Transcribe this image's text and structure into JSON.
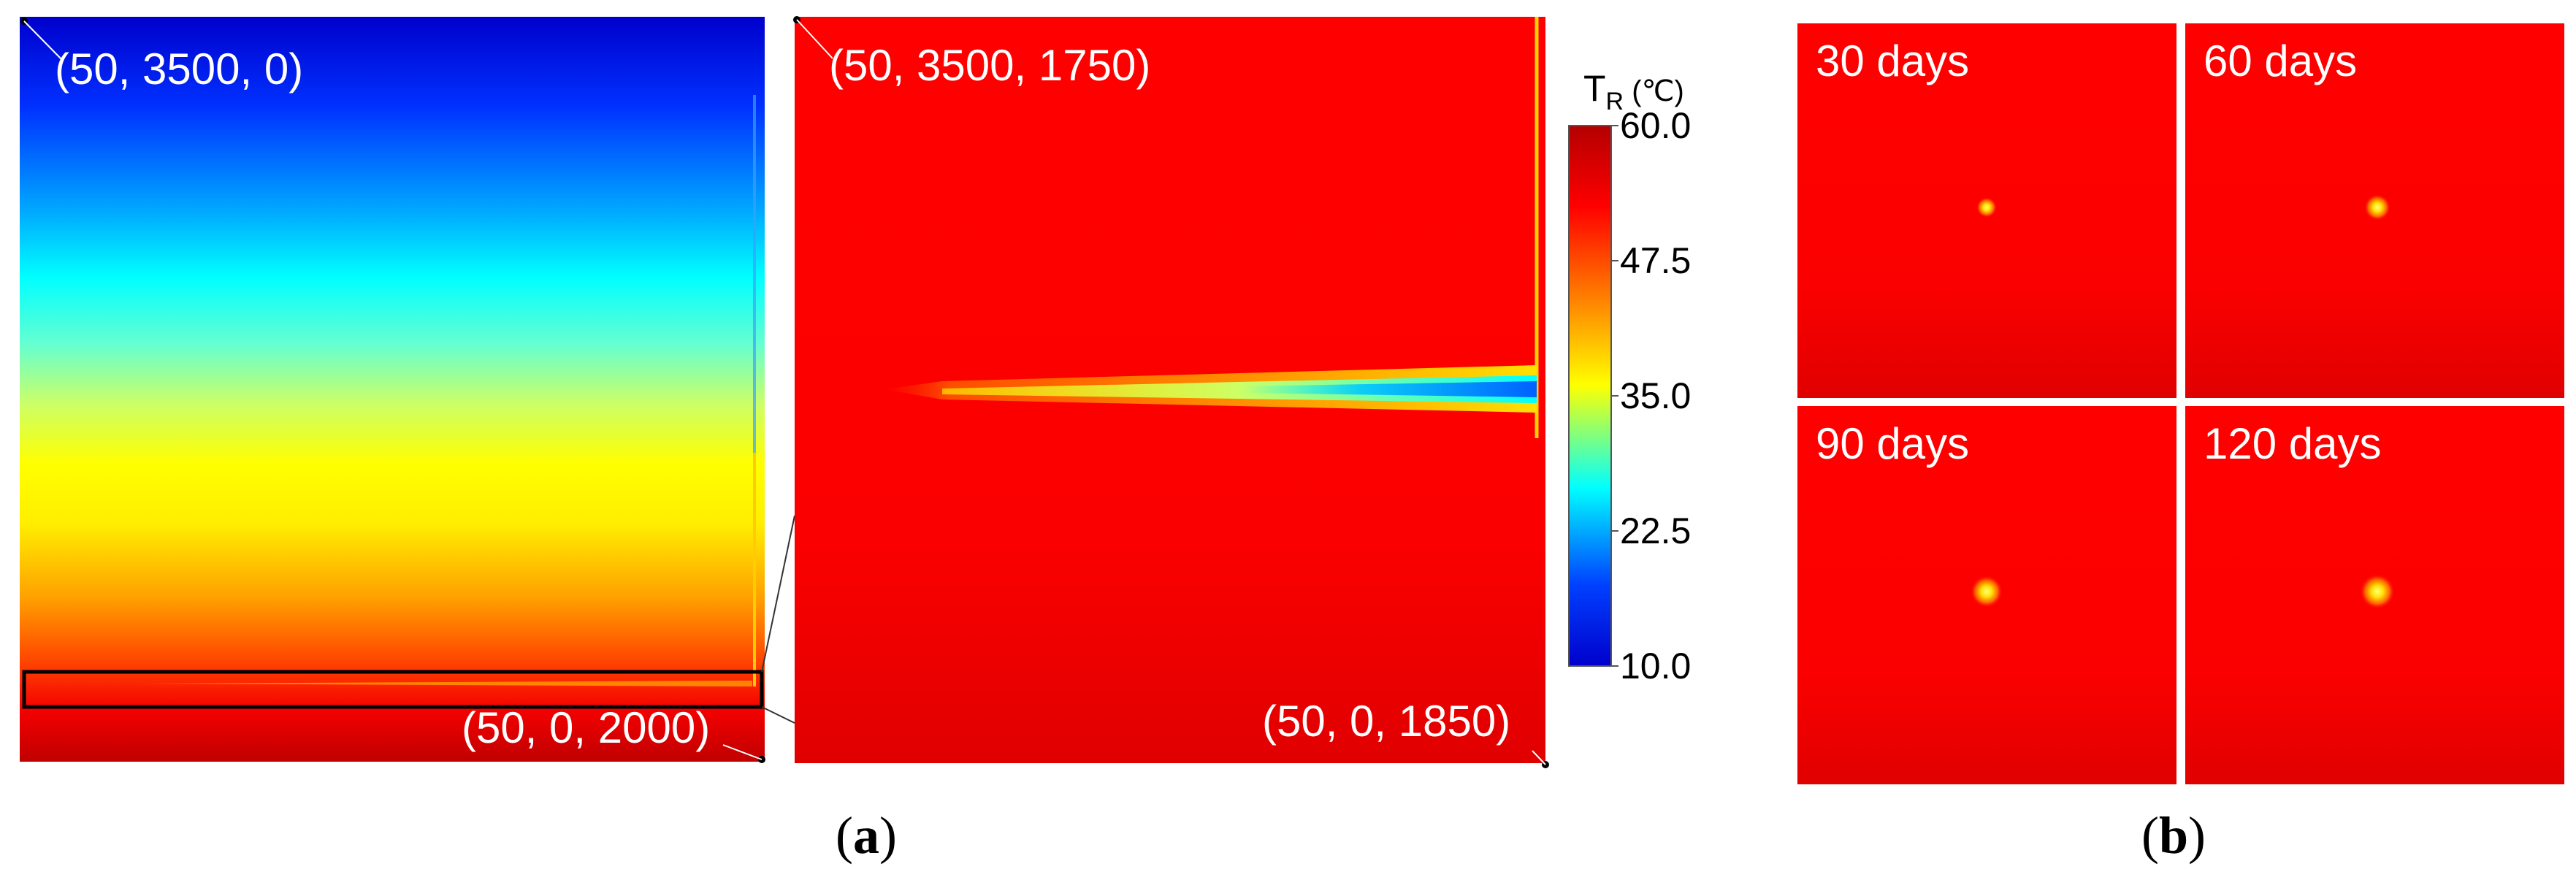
{
  "panel_a": {
    "letter_open": "(",
    "letter": "a",
    "letter_close": ")",
    "left_map": {
      "label_top": "(50, 3500, 0)",
      "label_bottom": "(50, 0, 2000)"
    },
    "zoom_map": {
      "label_top": "(50, 3500, 1750)",
      "label_bottom": "(50, 0, 1850)"
    },
    "colorbar": {
      "title_main": "T",
      "title_sub": "R",
      "title_unit": " (℃)",
      "ticks": [
        "60.0",
        "47.5",
        "35.0",
        "22.5",
        "10.0"
      ],
      "min": 10.0,
      "max": 60.0,
      "colors": [
        "#0000cc",
        "#0040ff",
        "#00ffff",
        "#ffff00",
        "#ff8000",
        "#ff0000",
        "#b40000"
      ]
    }
  },
  "panel_b": {
    "letter_open": "(",
    "letter": "b",
    "letter_close": ")",
    "snapshots": [
      {
        "label": "30 days"
      },
      {
        "label": "60 days"
      },
      {
        "label": "90 days"
      },
      {
        "label": "120 days"
      }
    ]
  }
}
